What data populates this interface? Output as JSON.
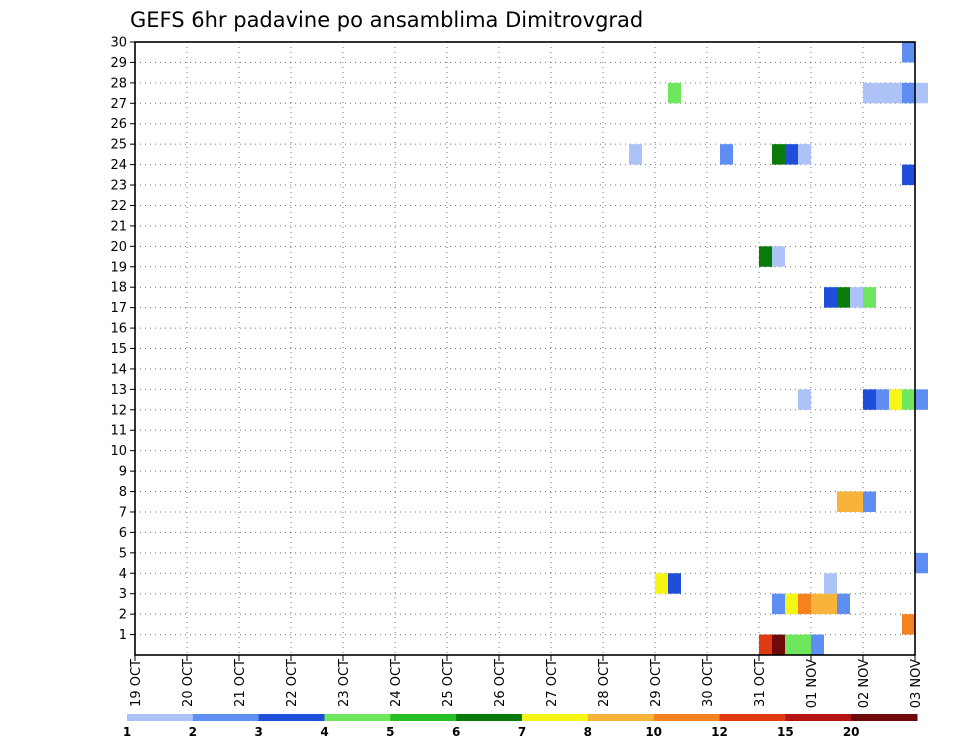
{
  "chart_data": {
    "type": "heatmap",
    "title": "GEFS 6hr padavine po ansamblima Dimitrovgrad",
    "x_tick_labels": [
      "19 OCT",
      "20 OCT",
      "21 OCT",
      "22 OCT",
      "23 OCT",
      "24 OCT",
      "25 OCT",
      "26 OCT",
      "27 OCT",
      "28 OCT",
      "29 OCT",
      "30 OCT",
      "31 OCT",
      "01 NOV",
      "02 NOV",
      "03 NOV"
    ],
    "y_tick_labels": [
      "1",
      "2",
      "3",
      "4",
      "5",
      "6",
      "7",
      "8",
      "9",
      "10",
      "11",
      "12",
      "13",
      "14",
      "15",
      "16",
      "17",
      "18",
      "19",
      "20",
      "21",
      "22",
      "23",
      "24",
      "25",
      "26",
      "27",
      "28",
      "29",
      "30"
    ],
    "x_steps_per_day": 4,
    "x_range_days": [
      0,
      15
    ],
    "y_range": [
      0,
      30
    ],
    "grid": true,
    "colorbar": {
      "labels": [
        "1",
        "2",
        "3",
        "4",
        "5",
        "6",
        "7",
        "8",
        "10",
        "12",
        "15",
        "20"
      ],
      "colors": [
        "#adc3f8",
        "#5f8ef2",
        "#1f4fd8",
        "#6ee65e",
        "#26bf26",
        "#0a7a0a",
        "#f5f516",
        "#f8b43a",
        "#f5821f",
        "#e03a12",
        "#b41414",
        "#6e0a0a"
      ]
    },
    "cells": [
      {
        "member": 0,
        "time": "31 OCT 00Z",
        "step": 48,
        "value": 13
      },
      {
        "member": 0,
        "time": "31 OCT 06Z",
        "step": 49,
        "value": 20
      },
      {
        "member": 0,
        "time": "31 OCT 12Z",
        "step": 50,
        "value": 4
      },
      {
        "member": 0,
        "time": "31 OCT 18Z",
        "step": 51,
        "value": 4
      },
      {
        "member": 0,
        "time": "01 NOV 00Z",
        "step": 52,
        "value": 2
      },
      {
        "member": 1,
        "time": "02 NOV 18Z",
        "step": 59,
        "value": 10
      },
      {
        "member": 2,
        "time": "31 OCT 06Z",
        "step": 49,
        "value": 2
      },
      {
        "member": 2,
        "time": "31 OCT 12Z",
        "step": 50,
        "value": 7
      },
      {
        "member": 2,
        "time": "31 OCT 18Z",
        "step": 51,
        "value": 10
      },
      {
        "member": 2,
        "time": "01 NOV 00Z",
        "step": 52,
        "value": 8
      },
      {
        "member": 2,
        "time": "01 NOV 06Z",
        "step": 53,
        "value": 8
      },
      {
        "member": 2,
        "time": "01 NOV 12Z",
        "step": 54,
        "value": 2
      },
      {
        "member": 3,
        "time": "29 OCT 00Z",
        "step": 40,
        "value": 7
      },
      {
        "member": 3,
        "time": "29 OCT 06Z",
        "step": 41,
        "value": 3
      },
      {
        "member": 3,
        "time": "01 NOV 06Z",
        "step": 53,
        "value": 1
      },
      {
        "member": 4,
        "time": "03 NOV 00Z",
        "step": 60,
        "value": 2
      },
      {
        "member": 7,
        "time": "01 NOV 12Z",
        "step": 54,
        "value": 8
      },
      {
        "member": 7,
        "time": "01 NOV 18Z",
        "step": 55,
        "value": 8
      },
      {
        "member": 7,
        "time": "02 NOV 00Z",
        "step": 56,
        "value": 2
      },
      {
        "member": 12,
        "time": "31 OCT 18Z",
        "step": 51,
        "value": 1
      },
      {
        "member": 12,
        "time": "02 NOV 00Z",
        "step": 56,
        "value": 3
      },
      {
        "member": 12,
        "time": "02 NOV 06Z",
        "step": 57,
        "value": 2
      },
      {
        "member": 12,
        "time": "02 NOV 12Z",
        "step": 58,
        "value": 7
      },
      {
        "member": 12,
        "time": "02 NOV 18Z",
        "step": 59,
        "value": 4
      },
      {
        "member": 12,
        "time": "03 NOV 00Z",
        "step": 60,
        "value": 2
      },
      {
        "member": 17,
        "time": "01 NOV 06Z",
        "step": 53,
        "value": 3
      },
      {
        "member": 17,
        "time": "01 NOV 12Z",
        "step": 54,
        "value": 6
      },
      {
        "member": 17,
        "time": "01 NOV 18Z",
        "step": 55,
        "value": 1
      },
      {
        "member": 17,
        "time": "02 NOV 00Z",
        "step": 56,
        "value": 4
      },
      {
        "member": 19,
        "time": "31 OCT 00Z",
        "step": 48,
        "value": 6
      },
      {
        "member": 19,
        "time": "31 OCT 06Z",
        "step": 49,
        "value": 1
      },
      {
        "member": 23,
        "time": "02 NOV 18Z",
        "step": 59,
        "value": 3
      },
      {
        "member": 24,
        "time": "28 OCT 12Z",
        "step": 38,
        "value": 1
      },
      {
        "member": 24,
        "time": "30 OCT 06Z",
        "step": 45,
        "value": 2
      },
      {
        "member": 24,
        "time": "31 OCT 06Z",
        "step": 49,
        "value": 6
      },
      {
        "member": 24,
        "time": "31 OCT 12Z",
        "step": 50,
        "value": 3
      },
      {
        "member": 24,
        "time": "31 OCT 18Z",
        "step": 51,
        "value": 1
      },
      {
        "member": 27,
        "time": "29 OCT 06Z",
        "step": 41,
        "value": 4
      },
      {
        "member": 27,
        "time": "02 NOV 00Z",
        "step": 56,
        "value": 1
      },
      {
        "member": 27,
        "time": "02 NOV 06Z",
        "step": 57,
        "value": 1
      },
      {
        "member": 27,
        "time": "02 NOV 12Z",
        "step": 58,
        "value": 1
      },
      {
        "member": 27,
        "time": "02 NOV 18Z",
        "step": 59,
        "value": 2
      },
      {
        "member": 27,
        "time": "03 NOV 00Z",
        "step": 60,
        "value": 1
      },
      {
        "member": 29,
        "time": "02 NOV 18Z",
        "step": 59,
        "value": 2
      }
    ]
  }
}
